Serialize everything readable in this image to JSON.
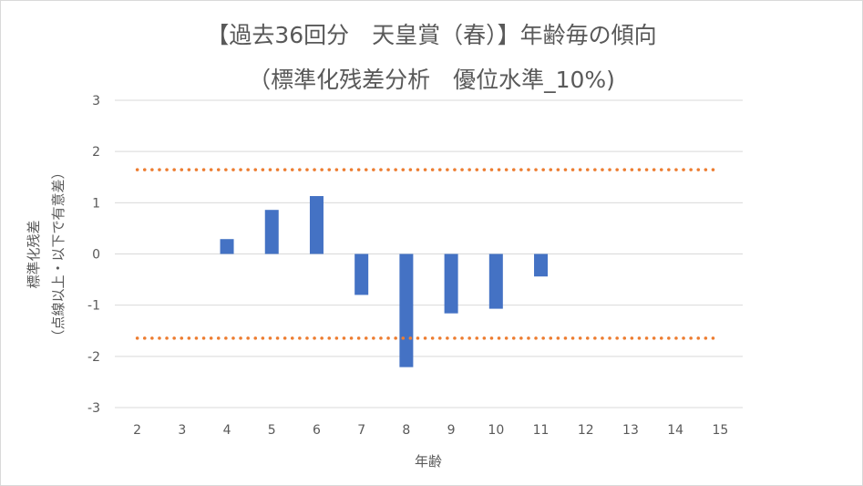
{
  "chart_data": {
    "type": "bar",
    "title": "【過去36回分　天皇賞（春）】年齢毎の傾向",
    "subtitle": "（標準化残差分析　優位水準_10%)",
    "xlabel": "年齢",
    "ylabel_line1": "標準化残差",
    "ylabel_line2": "（点線以上・以下で有意差）",
    "categories": [
      "2",
      "3",
      "4",
      "5",
      "6",
      "7",
      "8",
      "9",
      "10",
      "11",
      "12",
      "13",
      "14",
      "15"
    ],
    "values": [
      0,
      0,
      0.29,
      0.86,
      1.13,
      -0.8,
      -2.21,
      -1.16,
      -1.07,
      -0.44,
      0,
      0,
      0,
      0
    ],
    "y_ticks": [
      "3",
      "2",
      "1",
      "0",
      "-1",
      "-2",
      "-3"
    ],
    "ylim": [
      -3,
      3
    ],
    "threshold_upper": 1.645,
    "threshold_lower": -1.645,
    "grid": true,
    "legend": "none",
    "colors": {
      "bar": "#4472c4",
      "threshold": "#ed7d31",
      "grid": "#d9d9d9",
      "text": "#595959"
    }
  }
}
